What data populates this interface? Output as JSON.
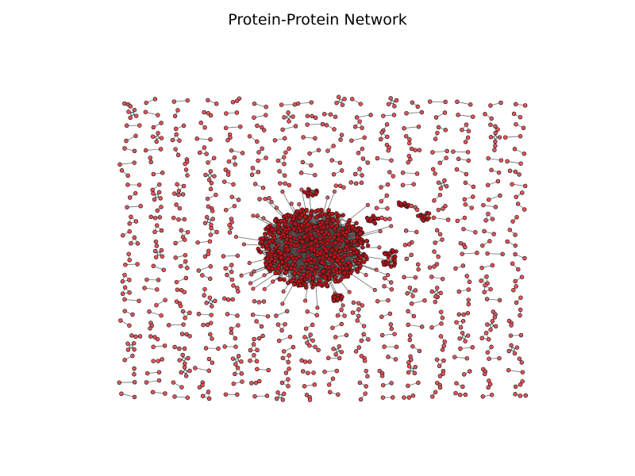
{
  "figure": {
    "title": "Protein-Protein Network"
  },
  "style": {
    "node_fill": "#e8555b",
    "node_stroke": "#1a1a1a",
    "edge_color": "#4a4a4a",
    "core_fill": "#c01418",
    "background": "#ffffff"
  },
  "network": {
    "layout": "spring",
    "components": {
      "giant_core": 1,
      "dense_clusters": 7,
      "star_motifs": 30,
      "triangles": 40,
      "paths_of_three": 70,
      "pairs": 260
    }
  }
}
